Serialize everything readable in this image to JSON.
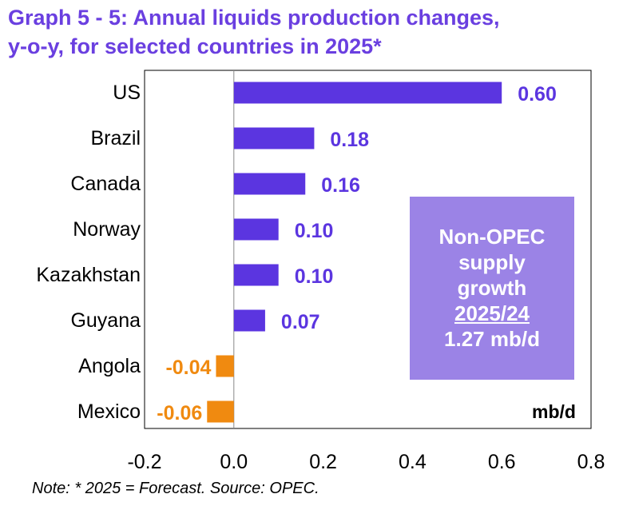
{
  "title_lines": [
    "Graph 5 - 5: Annual liquids production changes,",
    "y-o-y, for selected countries in 2025*"
  ],
  "note": "Note: * 2025 = Forecast. Source: OPEC.",
  "callout": {
    "lines": [
      "Non-OPEC",
      "supply",
      "growth",
      "2025/24",
      "1.27 mb/d"
    ]
  },
  "colors": {
    "title": "#6a3fe0",
    "positive": "#5b35e0",
    "negative": "#f08a10",
    "callout_bg": "#9b83e6"
  },
  "chart_data": {
    "type": "bar",
    "orientation": "horizontal",
    "categories": [
      "US",
      "Brazil",
      "Canada",
      "Norway",
      "Kazakhstan",
      "Guyana",
      "Angola",
      "Mexico"
    ],
    "values": [
      0.6,
      0.18,
      0.16,
      0.1,
      0.1,
      0.07,
      -0.04,
      -0.06
    ],
    "value_labels": [
      "0.60",
      "0.18",
      "0.16",
      "0.10",
      "0.10",
      "0.07",
      "-0.04",
      "-0.06"
    ],
    "xlim": [
      -0.2,
      0.8
    ],
    "xticks": [
      "-0.2",
      "0.0",
      "0.2",
      "0.4",
      "0.6",
      "0.8"
    ],
    "xtick_values": [
      -0.2,
      0.0,
      0.2,
      0.4,
      0.6,
      0.8
    ],
    "unit_label": "mb/d",
    "grid": false
  }
}
